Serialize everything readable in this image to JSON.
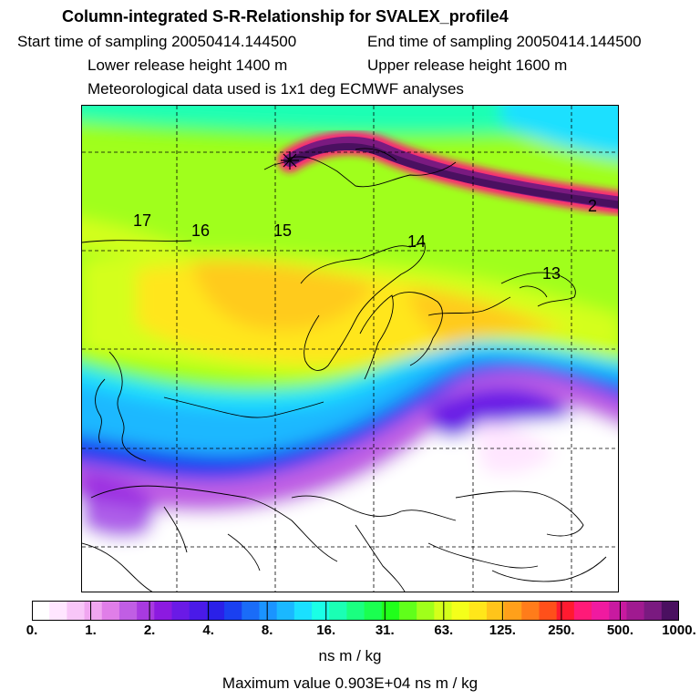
{
  "header": {
    "title": "Column-integrated S-R-Relationship for SVALEX_profile4",
    "start_time": "Start time of sampling 20050414.144500",
    "end_time": "End time of sampling 20050414.144500",
    "lower_height": "Lower release height 1400 m",
    "upper_height": "Upper release height 1600 m",
    "met_data": "Meteorological data used is 1x1 deg ECMWF analyses"
  },
  "map": {
    "day_labels": [
      "17",
      "16",
      "15",
      "14",
      "13",
      "2"
    ],
    "source_icon": "star-marker-icon"
  },
  "colorbar": {
    "ticks": [
      "0.",
      "1.",
      "2.",
      "4.",
      "8.",
      "16.",
      "31.",
      "63.",
      "125.",
      "250.",
      "500.",
      "1000."
    ],
    "colors": [
      "#ffffff",
      "#ffe6ff",
      "#f8c6f8",
      "#f0a6f0",
      "#e07ee8",
      "#c05ee4",
      "#a83ae0",
      "#8c1ae0",
      "#6a1ae6",
      "#4a1ae8",
      "#2a20e8",
      "#1a40f0",
      "#1a6cf8",
      "#1a94ff",
      "#1ab8ff",
      "#1ae0ff",
      "#1affe6",
      "#1affb4",
      "#1aff80",
      "#1aff50",
      "#20ff1a",
      "#60ff1a",
      "#a0ff1a",
      "#d4ff1a",
      "#f4ff1a",
      "#ffe61a",
      "#ffc41a",
      "#ffa01a",
      "#ff7c1a",
      "#ff501a",
      "#ff1a30",
      "#ff1a78",
      "#f01aa0",
      "#c81aa0",
      "#a01a90",
      "#7a1a80",
      "#4a1060"
    ],
    "unit": "ns m / kg",
    "max_value": "Maximum value  0.903E+04 ns m / kg"
  }
}
